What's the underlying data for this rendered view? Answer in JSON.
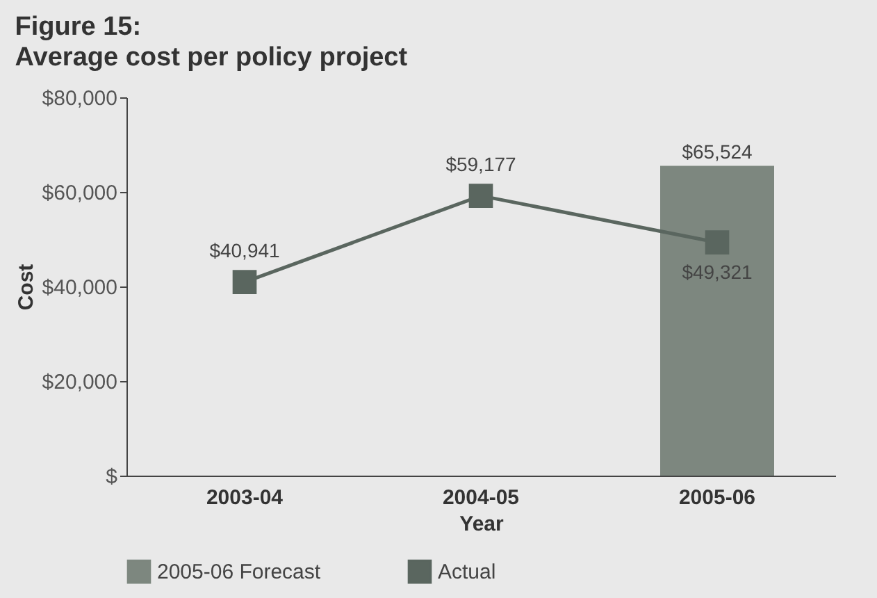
{
  "chart_data": {
    "type": "bar",
    "title": "Figure 15:",
    "subtitle": "Average cost per policy project",
    "xlabel": "Year",
    "ylabel": "Cost",
    "categories": [
      "2003-04",
      "2004-05",
      "2005-06"
    ],
    "series": [
      {
        "name": "2005-06 Forecast",
        "color": "#7d877f",
        "values": [
          null,
          null,
          65524
        ],
        "value_labels": [
          null,
          null,
          "$65,524"
        ]
      },
      {
        "name": "Actual",
        "type": "line",
        "color": "#5a665f",
        "marker": "square",
        "values": [
          40941,
          59177,
          49321
        ],
        "value_labels": [
          "$40,941",
          "$59,177",
          "$49,321"
        ]
      }
    ],
    "ylim": [
      0,
      80000
    ],
    "yticks": [
      {
        "value": 0,
        "label": "$"
      },
      {
        "value": 20000,
        "label": "$20,000"
      },
      {
        "value": 40000,
        "label": "$40,000"
      },
      {
        "value": 60000,
        "label": "$60,000"
      },
      {
        "value": 80000,
        "label": "$80,000"
      }
    ],
    "grid": false,
    "legend": "bottom"
  }
}
